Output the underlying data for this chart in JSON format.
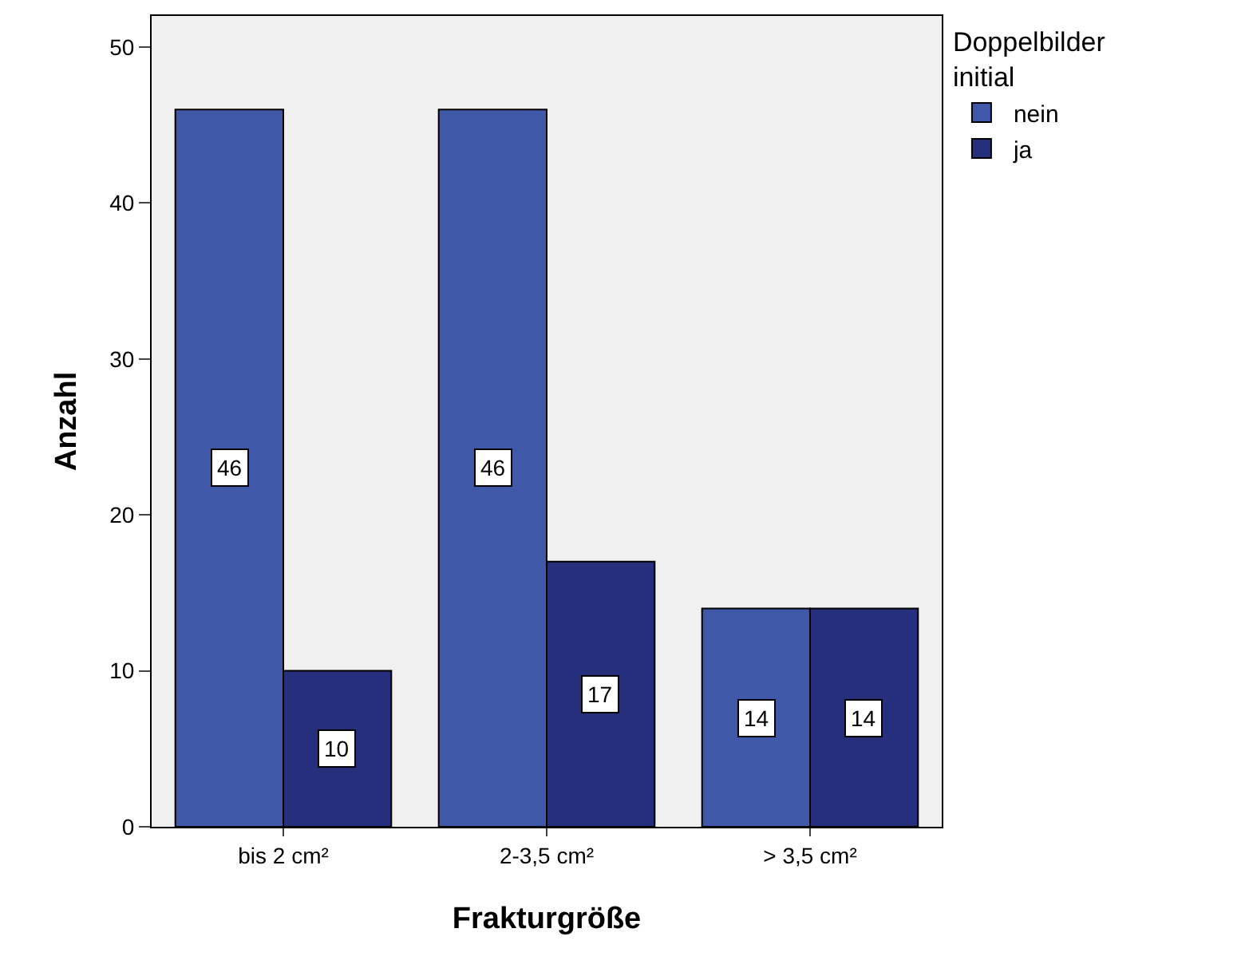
{
  "chart_data": {
    "type": "bar",
    "xlabel": "Frakturgröße",
    "ylabel": "Anzahl",
    "legend_title": "Doppelbilder initial",
    "categories": [
      "bis 2 cm²",
      "2-3,5 cm²",
      "> 3,5 cm²"
    ],
    "series": [
      {
        "name": "nein",
        "color": "#3f58a8",
        "values": [
          46,
          46,
          14
        ]
      },
      {
        "name": "ja",
        "color": "#262f7c",
        "values": [
          10,
          17,
          14
        ]
      }
    ],
    "ylim": [
      0,
      52
    ],
    "yticks": [
      0,
      10,
      20,
      30,
      40,
      50
    ],
    "grid": false,
    "legend": "top right",
    "data_labels": true
  }
}
